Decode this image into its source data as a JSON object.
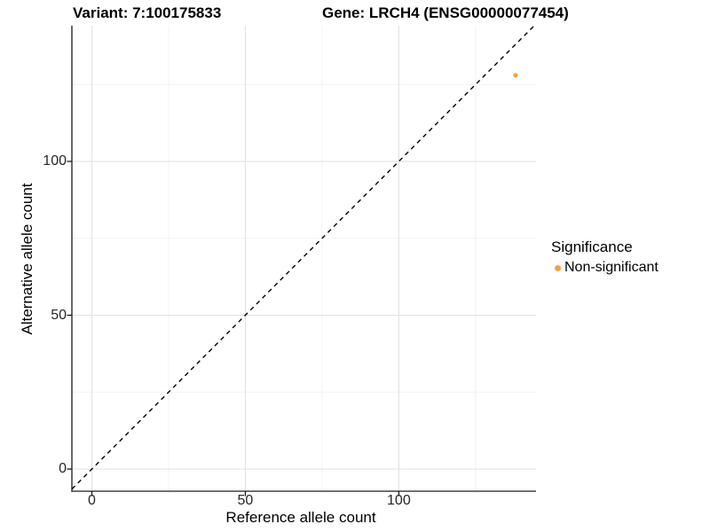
{
  "figure": {
    "variant_title": "Variant: 7:100175833",
    "gene_title": "Gene: LRCH4 (ENSG00000077454)"
  },
  "axes": {
    "x_label": "Reference allele count",
    "y_label": "Alternative allele count"
  },
  "legend": {
    "title": "Significance",
    "items": [
      {
        "label": "Non-significant",
        "color": "#F9A242"
      }
    ]
  },
  "chart_data": {
    "type": "scatter",
    "titles": [
      "Variant: 7:100175833",
      "Gene: LRCH4 (ENSG00000077454)"
    ],
    "xlabel": "Reference allele count",
    "ylabel": "Alternative allele count",
    "xlim": [
      -6.5,
      144.7
    ],
    "ylim": [
      -7.2,
      144.1
    ],
    "x_ticks": [
      0,
      50,
      100
    ],
    "y_ticks": [
      0,
      50,
      100
    ],
    "x_minor_gridlines": [
      25,
      75,
      125
    ],
    "y_minor_gridlines": [
      25,
      75,
      125
    ],
    "grid": true,
    "legend_position": "right",
    "series": [
      {
        "name": "Non-significant",
        "color": "#F9A242",
        "point_radius": 2.6,
        "points": [
          {
            "x": 138,
            "y": 128
          }
        ]
      }
    ],
    "reference_line": {
      "kind": "identity",
      "slope": 1,
      "intercept": 0,
      "linestyle": "dashed",
      "color": "#000000"
    }
  },
  "colors": {
    "background": "#FFFFFF",
    "axis_line": "#1A1A1A",
    "tick_mark": "#1A1A1A",
    "grid_major": "#E3E3E3",
    "grid_minor": "#F2F2F2",
    "dashed_line": "#000000",
    "point": "#F9A242"
  }
}
